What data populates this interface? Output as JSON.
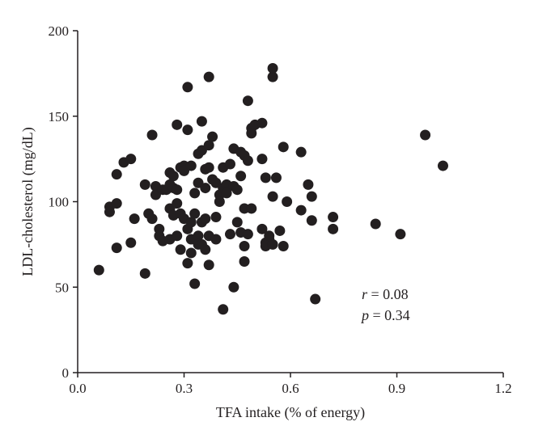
{
  "chart_data": {
    "type": "scatter",
    "title": "",
    "xlabel": "TFA intake (% of energy)",
    "ylabel": "LDL-cholesterol (mg/dL)",
    "xlim": [
      0.0,
      1.2
    ],
    "ylim": [
      0,
      200
    ],
    "x_ticks": [
      "0.0",
      "0.3",
      "0.6",
      "0.9",
      "1.2"
    ],
    "y_ticks": [
      "0",
      "50",
      "100",
      "150",
      "200"
    ],
    "grid": false,
    "legend": "none",
    "point_color": "#231f20",
    "annotations": [
      {
        "symbol": "r",
        "text": " = 0.08"
      },
      {
        "symbol": "p",
        "text": " = 0.34"
      }
    ],
    "points": [
      [
        0.06,
        60
      ],
      [
        0.09,
        97
      ],
      [
        0.09,
        94
      ],
      [
        0.11,
        73
      ],
      [
        0.11,
        99
      ],
      [
        0.11,
        116
      ],
      [
        0.13,
        123
      ],
      [
        0.15,
        125
      ],
      [
        0.15,
        76
      ],
      [
        0.16,
        90
      ],
      [
        0.19,
        110
      ],
      [
        0.19,
        58
      ],
      [
        0.2,
        93
      ],
      [
        0.21,
        90
      ],
      [
        0.21,
        139
      ],
      [
        0.22,
        109
      ],
      [
        0.22,
        104
      ],
      [
        0.23,
        84
      ],
      [
        0.23,
        80
      ],
      [
        0.24,
        77
      ],
      [
        0.24,
        107
      ],
      [
        0.25,
        107
      ],
      [
        0.26,
        117
      ],
      [
        0.26,
        110
      ],
      [
        0.26,
        96
      ],
      [
        0.26,
        78
      ],
      [
        0.27,
        115
      ],
      [
        0.27,
        108
      ],
      [
        0.27,
        92
      ],
      [
        0.28,
        145
      ],
      [
        0.28,
        99
      ],
      [
        0.28,
        107
      ],
      [
        0.28,
        80
      ],
      [
        0.29,
        120
      ],
      [
        0.29,
        93
      ],
      [
        0.29,
        72
      ],
      [
        0.3,
        121
      ],
      [
        0.3,
        118
      ],
      [
        0.3,
        90
      ],
      [
        0.31,
        167
      ],
      [
        0.31,
        142
      ],
      [
        0.31,
        84
      ],
      [
        0.31,
        64
      ],
      [
        0.32,
        121
      ],
      [
        0.32,
        88
      ],
      [
        0.32,
        78
      ],
      [
        0.32,
        70
      ],
      [
        0.33,
        105
      ],
      [
        0.33,
        52
      ],
      [
        0.33,
        93
      ],
      [
        0.34,
        128
      ],
      [
        0.34,
        111
      ],
      [
        0.34,
        80
      ],
      [
        0.34,
        75
      ],
      [
        0.35,
        147
      ],
      [
        0.35,
        130
      ],
      [
        0.35,
        88
      ],
      [
        0.35,
        75
      ],
      [
        0.36,
        119
      ],
      [
        0.36,
        108
      ],
      [
        0.36,
        90
      ],
      [
        0.36,
        72
      ],
      [
        0.37,
        173
      ],
      [
        0.37,
        133
      ],
      [
        0.37,
        120
      ],
      [
        0.37,
        80
      ],
      [
        0.37,
        63
      ],
      [
        0.38,
        138
      ],
      [
        0.38,
        113
      ],
      [
        0.39,
        111
      ],
      [
        0.39,
        91
      ],
      [
        0.39,
        78
      ],
      [
        0.4,
        104
      ],
      [
        0.4,
        100
      ],
      [
        0.41,
        120
      ],
      [
        0.41,
        108
      ],
      [
        0.41,
        37
      ],
      [
        0.42,
        110
      ],
      [
        0.42,
        105
      ],
      [
        0.43,
        122
      ],
      [
        0.43,
        81
      ],
      [
        0.44,
        50
      ],
      [
        0.44,
        131
      ],
      [
        0.44,
        109
      ],
      [
        0.45,
        107
      ],
      [
        0.45,
        88
      ],
      [
        0.46,
        115
      ],
      [
        0.46,
        82
      ],
      [
        0.46,
        129
      ],
      [
        0.47,
        127
      ],
      [
        0.47,
        96
      ],
      [
        0.47,
        74
      ],
      [
        0.47,
        65
      ],
      [
        0.48,
        81
      ],
      [
        0.48,
        124
      ],
      [
        0.48,
        159
      ],
      [
        0.49,
        143
      ],
      [
        0.49,
        140
      ],
      [
        0.49,
        96
      ],
      [
        0.5,
        145
      ],
      [
        0.52,
        146
      ],
      [
        0.52,
        125
      ],
      [
        0.52,
        84
      ],
      [
        0.53,
        114
      ],
      [
        0.53,
        76
      ],
      [
        0.53,
        74
      ],
      [
        0.54,
        78
      ],
      [
        0.54,
        80
      ],
      [
        0.55,
        173
      ],
      [
        0.55,
        178
      ],
      [
        0.55,
        103
      ],
      [
        0.55,
        75
      ],
      [
        0.56,
        114
      ],
      [
        0.57,
        83
      ],
      [
        0.58,
        132
      ],
      [
        0.58,
        74
      ],
      [
        0.59,
        100
      ],
      [
        0.63,
        129
      ],
      [
        0.63,
        95
      ],
      [
        0.65,
        110
      ],
      [
        0.66,
        89
      ],
      [
        0.66,
        103
      ],
      [
        0.67,
        43
      ],
      [
        0.72,
        91
      ],
      [
        0.72,
        84
      ],
      [
        0.84,
        87
      ],
      [
        0.91,
        81
      ],
      [
        0.98,
        139
      ],
      [
        1.03,
        121
      ]
    ]
  }
}
